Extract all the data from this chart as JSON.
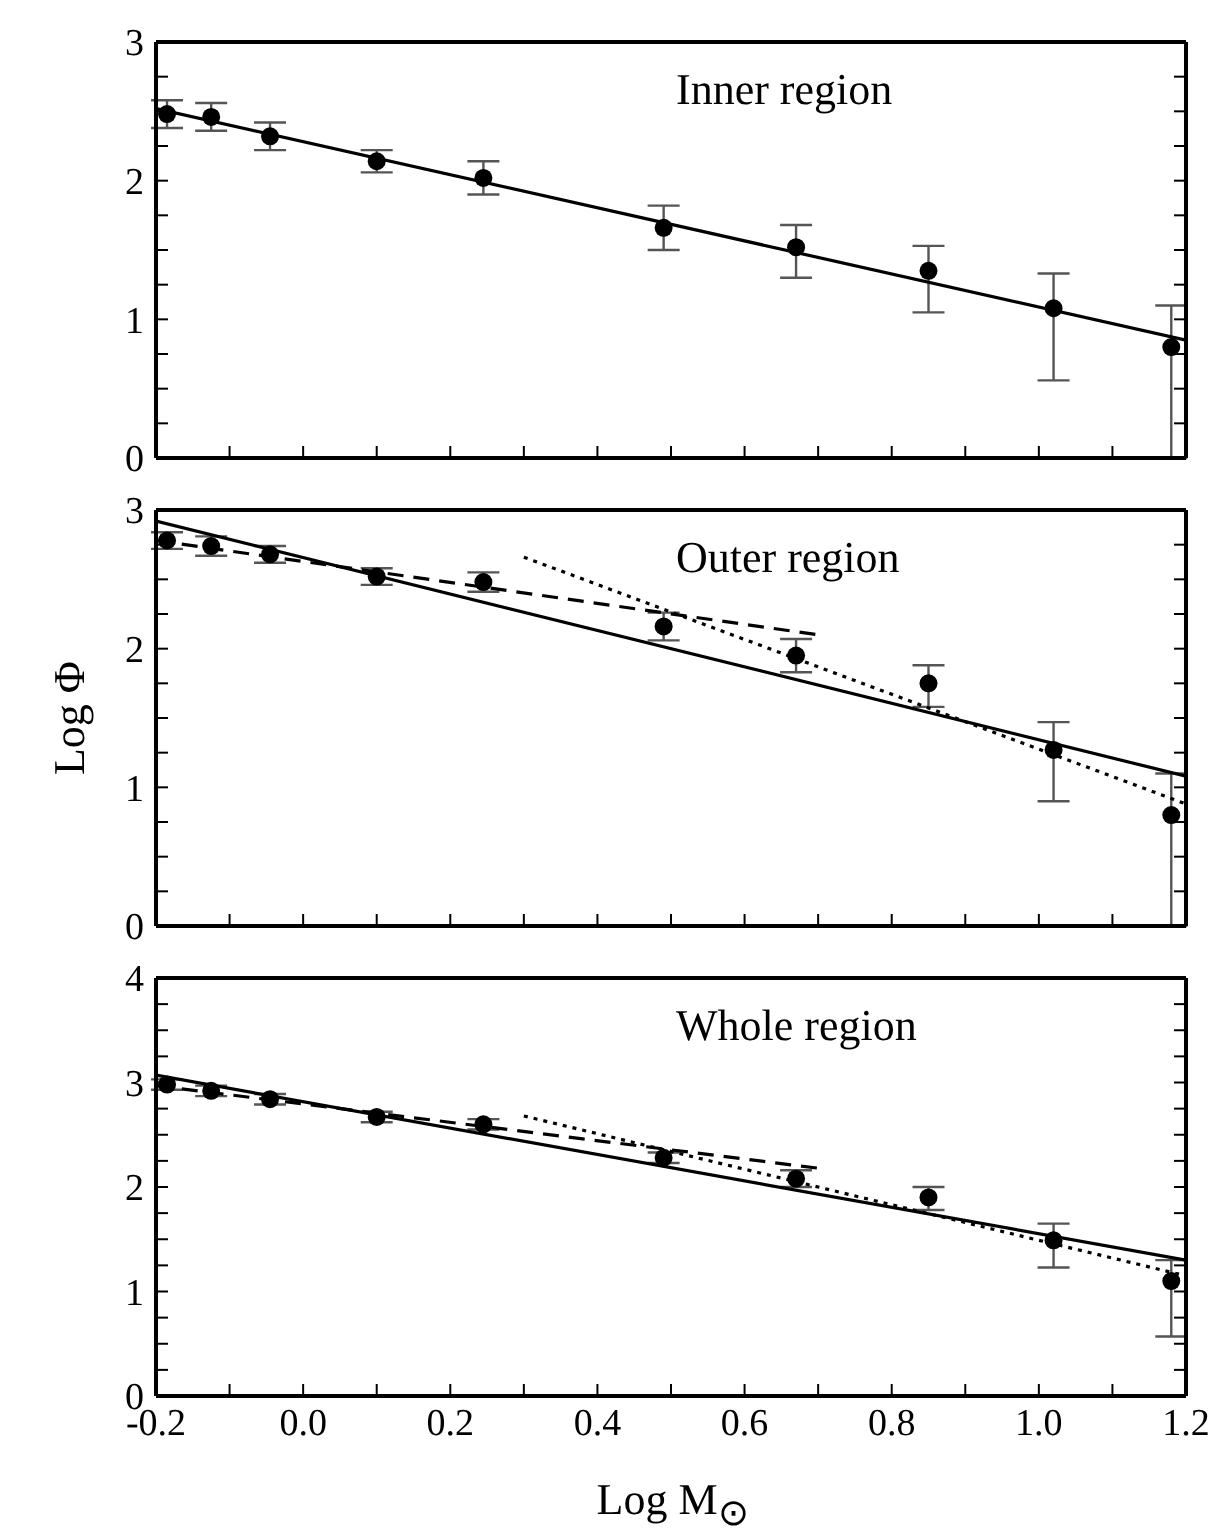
{
  "chart_data": [
    {
      "type": "scatter",
      "annotations": [
        "Inner region"
      ],
      "tick_labels": "y",
      "marker": "circle",
      "xlim": [
        -0.2,
        1.2
      ],
      "xticks": [
        -0.2,
        -0.1,
        0,
        0.1,
        0.2,
        0.3,
        0.4,
        0.5,
        0.6,
        0.7,
        0.8,
        0.9,
        1,
        1.1,
        1.2
      ],
      "ylim": [
        0,
        3
      ],
      "yticks": [
        0,
        {
          "value": 0.25,
          "label": null
        },
        {
          "value": 0.5,
          "label": null
        },
        {
          "value": 0.75,
          "label": null
        },
        1,
        {
          "value": 1.25,
          "label": null
        },
        {
          "value": 1.5,
          "label": null
        },
        {
          "value": 1.75,
          "label": null
        },
        2,
        {
          "value": 2.25,
          "label": null
        },
        {
          "value": 2.5,
          "label": null
        },
        {
          "value": 2.75,
          "label": null
        },
        3
      ],
      "x": [
        -0.185,
        -0.125,
        -0.045,
        0.1,
        0.245,
        0.49,
        0.67,
        0.85,
        1.02,
        1.18
      ],
      "series": [
        {
          "color": "#000000",
          "values": [
            2.48,
            2.46,
            2.32,
            2.14,
            2.02,
            1.66,
            1.52,
            1.35,
            1.08,
            0.8
          ],
          "errors": [
            0.1,
            0.1,
            0.1,
            0.08,
            0.12,
            0.16,
            [
              1.3,
              1.68
            ],
            [
              1.05,
              1.53
            ],
            [
              0.56,
              1.33
            ],
            [
              0,
              1.1
            ]
          ]
        },
        {
          "type": "line",
          "color": "#000000",
          "marker": "none",
          "line_style": "solid",
          "x": [
            -0.2,
            1.2
          ],
          "values": [
            2.52,
            0.85
          ]
        }
      ]
    },
    {
      "type": "scatter",
      "annotations": [
        "Outer region"
      ],
      "ylabel": "Log Φ",
      "tick_labels": "y",
      "marker": "circle",
      "xlim": [
        -0.2,
        1.2
      ],
      "xticks": [
        -0.2,
        -0.1,
        0,
        0.1,
        0.2,
        0.3,
        0.4,
        0.5,
        0.6,
        0.7,
        0.8,
        0.9,
        1,
        1.1,
        1.2
      ],
      "ylim": [
        0,
        3
      ],
      "yticks": [
        0,
        {
          "value": 0.25,
          "label": null
        },
        {
          "value": 0.5,
          "label": null
        },
        {
          "value": 0.75,
          "label": null
        },
        1,
        {
          "value": 1.25,
          "label": null
        },
        {
          "value": 1.5,
          "label": null
        },
        {
          "value": 1.75,
          "label": null
        },
        2,
        {
          "value": 2.25,
          "label": null
        },
        {
          "value": 2.5,
          "label": null
        },
        {
          "value": 2.75,
          "label": null
        },
        3
      ],
      "x": [
        -0.185,
        -0.125,
        -0.045,
        0.1,
        0.245,
        0.49,
        0.67,
        0.85,
        1.02,
        1.18
      ],
      "series": [
        {
          "color": "#000000",
          "values": [
            2.78,
            2.74,
            2.68,
            2.52,
            2.48,
            2.16,
            1.95,
            1.75,
            1.27,
            0.8
          ],
          "errors": [
            0.06,
            0.07,
            0.06,
            0.06,
            0.07,
            0.1,
            0.12,
            [
              1.58,
              1.88
            ],
            [
              0.9,
              1.47
            ],
            [
              0,
              1.1
            ]
          ]
        },
        {
          "type": "line",
          "color": "#000000",
          "marker": "none",
          "line_style": "solid",
          "x": [
            -0.2,
            1.2
          ],
          "values": [
            2.92,
            1.08
          ]
        },
        {
          "type": "line",
          "color": "#000000",
          "marker": "none",
          "line_style": "dashed",
          "x": [
            -0.2,
            0.7
          ],
          "values": [
            2.78,
            2.1
          ]
        },
        {
          "type": "line",
          "color": "#000000",
          "marker": "none",
          "line_style": "dotted",
          "x": [
            0.3,
            1.2
          ],
          "values": [
            2.66,
            0.88
          ]
        }
      ]
    },
    {
      "type": "scatter",
      "annotations": [
        "Whole region"
      ],
      "xlabel": "Log M$_{⊙}$",
      "marker": "circle",
      "xlim": [
        -0.2,
        1.2
      ],
      "xticks": [
        {
          "value": -0.2,
          "label": "-0.2"
        },
        {
          "value": -0.1,
          "label": null
        },
        {
          "value": 0,
          "label": "0.0"
        },
        {
          "value": 0.1,
          "label": null
        },
        {
          "value": 0.2,
          "label": "0.2"
        },
        {
          "value": 0.3,
          "label": null
        },
        {
          "value": 0.4,
          "label": "0.4"
        },
        {
          "value": 0.5,
          "label": null
        },
        {
          "value": 0.6,
          "label": "0.6"
        },
        {
          "value": 0.7,
          "label": null
        },
        {
          "value": 0.8,
          "label": "0.8"
        },
        {
          "value": 0.9,
          "label": null
        },
        {
          "value": 1,
          "label": "1.0"
        },
        {
          "value": 1.1,
          "label": null
        },
        {
          "value": 1.2,
          "label": "1.2"
        }
      ],
      "ylim": [
        0,
        4
      ],
      "yticks": [
        0,
        {
          "value": 0.25,
          "label": null
        },
        {
          "value": 0.5,
          "label": null
        },
        {
          "value": 0.75,
          "label": null
        },
        1,
        {
          "value": 1.25,
          "label": null
        },
        {
          "value": 1.5,
          "label": null
        },
        {
          "value": 1.75,
          "label": null
        },
        2,
        {
          "value": 2.25,
          "label": null
        },
        {
          "value": 2.5,
          "label": null
        },
        {
          "value": 2.75,
          "label": null
        },
        3,
        {
          "value": 3.25,
          "label": null
        },
        {
          "value": 3.5,
          "label": null
        },
        {
          "value": 3.75,
          "label": null
        },
        4
      ],
      "x": [
        -0.185,
        -0.125,
        -0.045,
        0.1,
        0.245,
        0.49,
        0.67,
        0.85,
        1.02,
        1.18
      ],
      "series": [
        {
          "color": "#000000",
          "values": [
            2.98,
            2.92,
            2.84,
            2.67,
            2.6,
            2.28,
            2.08,
            1.9,
            1.49,
            1.1
          ],
          "errors": [
            0.05,
            0.05,
            0.05,
            0.05,
            0.05,
            0.05,
            0.08,
            [
              1.78,
              2.0
            ],
            [
              1.23,
              1.65
            ],
            [
              0.57,
              1.3
            ]
          ]
        },
        {
          "type": "line",
          "color": "#000000",
          "marker": "none",
          "line_style": "solid",
          "x": [
            -0.2,
            1.2
          ],
          "values": [
            3.07,
            1.3
          ]
        },
        {
          "type": "line",
          "color": "#000000",
          "marker": "none",
          "line_style": "dashed",
          "x": [
            -0.2,
            0.7
          ],
          "values": [
            2.97,
            2.18
          ]
        },
        {
          "type": "line",
          "color": "#000000",
          "marker": "none",
          "line_style": "dotted",
          "x": [
            0.3,
            1.2
          ],
          "values": [
            2.68,
            1.15
          ]
        }
      ]
    }
  ]
}
